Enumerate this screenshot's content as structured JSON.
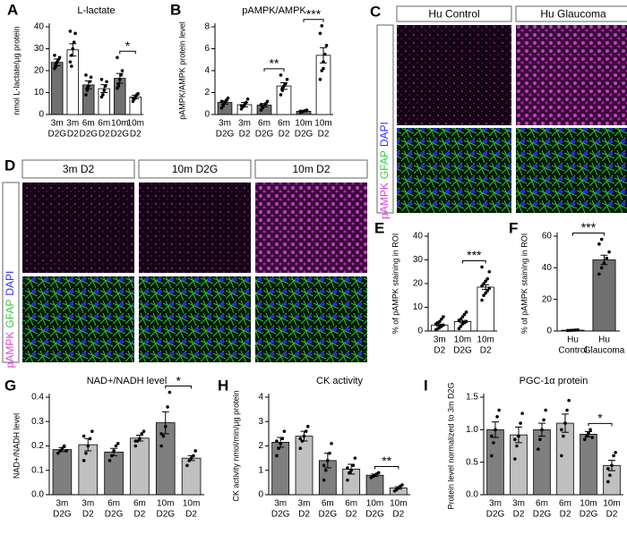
{
  "chart_data": [
    {
      "type": "bar",
      "panel": "A",
      "title": "L-lactate",
      "ylabel": "nmol L-lactate/µg protein",
      "categories": [
        [
          "3m",
          "D2G"
        ],
        [
          "3m",
          "D2"
        ],
        [
          "6m",
          "D2G"
        ],
        [
          "6m",
          "D2"
        ],
        [
          "10m",
          "D2G"
        ],
        [
          "10m",
          "D2"
        ]
      ],
      "values": [
        23.8,
        29.5,
        13.5,
        11.8,
        16.5,
        8
      ],
      "errors": [
        1.5,
        2.8,
        1.8,
        1.8,
        2.2,
        0.8
      ],
      "points": [
        [
          21,
          22,
          24,
          25,
          26,
          27,
          23
        ],
        [
          24,
          27,
          30,
          33,
          37,
          38,
          22
        ],
        [
          9,
          11,
          13,
          15,
          17,
          18,
          12
        ],
        [
          8,
          9,
          11,
          13,
          15,
          16
        ],
        [
          12,
          14,
          16,
          18,
          20,
          26,
          13
        ],
        [
          6,
          7,
          8,
          9,
          9.5,
          7.5
        ]
      ],
      "colors": [
        "#707070",
        "#ffffff",
        "#707070",
        "#ffffff",
        "#707070",
        "#ffffff"
      ],
      "ylim": [
        0,
        40
      ],
      "yticks": [
        0,
        10,
        20,
        30,
        40
      ],
      "significance": [
        {
          "between": [
            4,
            5
          ],
          "label": "*"
        }
      ]
    },
    {
      "type": "bar",
      "panel": "B",
      "title": "pAMPK/AMPK",
      "ylabel": "pAMPK/AMPK protein level",
      "categories": [
        [
          "3m",
          "D2G"
        ],
        [
          "3m",
          "D2"
        ],
        [
          "6m",
          "D2G"
        ],
        [
          "6m",
          "D2"
        ],
        [
          "10m",
          "D2G"
        ],
        [
          "10m",
          "D2"
        ]
      ],
      "values": [
        1.1,
        0.9,
        0.85,
        2.6,
        0.3,
        5.4
      ],
      "errors": [
        0.15,
        0.2,
        0.15,
        0.3,
        0.06,
        0.7
      ],
      "points": [
        [
          0.6,
          0.9,
          1.1,
          1.3,
          1.5,
          1.2,
          0.8
        ],
        [
          0.5,
          0.7,
          0.9,
          1.1,
          1.4,
          0.8
        ],
        [
          0.4,
          0.6,
          0.8,
          1.0,
          1.2,
          0.9
        ],
        [
          1.8,
          2.2,
          2.6,
          2.8,
          3.2,
          3.6,
          2.4
        ],
        [
          0.2,
          0.25,
          0.3,
          0.35,
          0.4,
          0.3
        ],
        [
          3.2,
          4.0,
          4.8,
          5.5,
          6.3,
          7.4,
          8.1,
          4.2
        ]
      ],
      "colors": [
        "#707070",
        "#ffffff",
        "#707070",
        "#ffffff",
        "#707070",
        "#ffffff"
      ],
      "ylim": [
        0,
        8
      ],
      "yticks": [
        0,
        2,
        4,
        6,
        8
      ],
      "significance": [
        {
          "between": [
            2,
            3
          ],
          "label": "**"
        },
        {
          "between": [
            4,
            5
          ],
          "label": "***"
        }
      ]
    },
    {
      "type": "bar",
      "panel": "E",
      "ylabel": "% of pAMPK staining in ROI",
      "categories": [
        [
          "3m",
          "D2"
        ],
        [
          "10m",
          "D2G"
        ],
        [
          "10m",
          "D2"
        ]
      ],
      "values": [
        2.5,
        4,
        18.5
      ],
      "errors": [
        0.4,
        0.5,
        1
      ],
      "points": [
        [
          0.5,
          1,
          1.5,
          2,
          2.5,
          3,
          3.5,
          4,
          5,
          6
        ],
        [
          1,
          2,
          3,
          3.5,
          4,
          4.5,
          5,
          6,
          7,
          8
        ],
        [
          13,
          15,
          16,
          17,
          18,
          19,
          20,
          21,
          22,
          25,
          27
        ]
      ],
      "colors": [
        "#ffffff",
        "#ffffff",
        "#ffffff"
      ],
      "ylim": [
        0,
        40
      ],
      "yticks": [
        0,
        10,
        20,
        30,
        40
      ],
      "significance": [
        {
          "between": [
            1,
            2
          ],
          "label": "***"
        }
      ]
    },
    {
      "type": "bar",
      "panel": "F",
      "ylabel": "% of pAMPK staining in ROI",
      "categories": [
        [
          "Hu",
          "Control"
        ],
        [
          "Hu",
          "Glaucoma"
        ]
      ],
      "values": [
        0.5,
        45
      ],
      "errors": [
        0.1,
        3
      ],
      "points": [
        [
          0.3,
          0.4,
          0.5,
          0.6,
          0.7
        ],
        [
          36,
          40,
          43,
          46,
          50,
          55,
          58
        ]
      ],
      "colors": [
        "#ffffff",
        "#707070"
      ],
      "ylim": [
        0,
        60
      ],
      "yticks": [
        0,
        20,
        40,
        60
      ],
      "significance": [
        {
          "between": [
            0,
            1
          ],
          "label": "***"
        }
      ]
    },
    {
      "type": "bar",
      "panel": "G",
      "title": "NAD+/NADH level",
      "ylabel": "NAD+/NADH level",
      "categories": [
        [
          "3m",
          "D2G"
        ],
        [
          "3m",
          "D2"
        ],
        [
          "6m",
          "D2G"
        ],
        [
          "6m",
          "D2"
        ],
        [
          "10m",
          "D2G"
        ],
        [
          "10m",
          "D2"
        ]
      ],
      "values": [
        0.185,
        0.205,
        0.175,
        0.232,
        0.295,
        0.15
      ],
      "errors": [
        0.008,
        0.025,
        0.015,
        0.012,
        0.045,
        0.01
      ],
      "points": [
        [
          0.17,
          0.18,
          0.19,
          0.2,
          0.18
        ],
        [
          0.14,
          0.17,
          0.2,
          0.23,
          0.26,
          0.24
        ],
        [
          0.14,
          0.16,
          0.18,
          0.2,
          0.21
        ],
        [
          0.2,
          0.22,
          0.23,
          0.25,
          0.26,
          0.22
        ],
        [
          0.2,
          0.24,
          0.28,
          0.36,
          0.42,
          0.25
        ],
        [
          0.12,
          0.14,
          0.15,
          0.16,
          0.18
        ]
      ],
      "colors": [
        "#7f7f7f",
        "#c0c0c0",
        "#7f7f7f",
        "#c0c0c0",
        "#7f7f7f",
        "#c0c0c0"
      ],
      "ylim": [
        0,
        0.4
      ],
      "yticks": [
        {
          "value": 0,
          "label": "0.0"
        },
        0.1,
        0.2,
        0.3,
        0.4
      ],
      "significance": [
        {
          "between": [
            4,
            5
          ],
          "label": "*"
        }
      ]
    },
    {
      "type": "bar",
      "panel": "H",
      "title": "CK activity",
      "ylabel": "CK activity nmol/min/µg protein",
      "categories": [
        [
          "3m",
          "D2G"
        ],
        [
          "3m",
          "D2"
        ],
        [
          "6m",
          "D2G"
        ],
        [
          "6m",
          "D2"
        ],
        [
          "10m",
          "D2G"
        ],
        [
          "10m",
          "D2"
        ]
      ],
      "values": [
        2.15,
        2.4,
        1.4,
        1.05,
        0.8,
        0.28
      ],
      "errors": [
        0.2,
        0.2,
        0.3,
        0.2,
        0.05,
        0.05
      ],
      "points": [
        [
          1.6,
          1.9,
          2.1,
          2.3,
          2.6,
          2.2
        ],
        [
          1.9,
          2.2,
          2.4,
          2.6,
          2.8,
          2.3
        ],
        [
          0.6,
          1.0,
          1.4,
          1.7,
          2.1,
          1.2
        ],
        [
          0.6,
          0.9,
          1.0,
          1.2,
          1.5,
          1.1
        ],
        [
          0.7,
          0.75,
          0.8,
          0.85,
          0.9
        ],
        [
          0.15,
          0.2,
          0.28,
          0.35,
          0.4
        ]
      ],
      "colors": [
        "#7f7f7f",
        "#c0c0c0",
        "#7f7f7f",
        "#c0c0c0",
        "#7f7f7f",
        "#c0c0c0"
      ],
      "ylim": [
        0,
        4
      ],
      "yticks": [
        0,
        1,
        2,
        3,
        4
      ],
      "significance": [
        {
          "between": [
            4,
            5
          ],
          "label": "**"
        }
      ]
    },
    {
      "type": "bar",
      "panel": "I",
      "title": "PGC-1α protein",
      "ylabel": "Protein level normalized to 3m D2G",
      "categories": [
        [
          "3m",
          "D2G"
        ],
        [
          "3m",
          "D2"
        ],
        [
          "6m",
          "D2G"
        ],
        [
          "6m",
          "D2"
        ],
        [
          "10m",
          "D2G"
        ],
        [
          "10m",
          "D2"
        ]
      ],
      "values": [
        1.0,
        0.92,
        1.0,
        1.1,
        0.93,
        0.45
      ],
      "errors": [
        0.12,
        0.12,
        0.1,
        0.14,
        0.04,
        0.08
      ],
      "points": [
        [
          0.6,
          0.8,
          1.0,
          1.2,
          1.3,
          0.9
        ],
        [
          0.55,
          0.75,
          0.9,
          1.1,
          1.25,
          0.85
        ],
        [
          0.7,
          0.85,
          1.0,
          1.15,
          1.3
        ],
        [
          0.6,
          0.9,
          1.1,
          1.3,
          1.45,
          1.0
        ],
        [
          0.85,
          0.9,
          0.95,
          1.0,
          0.88
        ],
        [
          0.2,
          0.3,
          0.45,
          0.6,
          0.65,
          0.4
        ]
      ],
      "colors": [
        "#7f7f7f",
        "#c0c0c0",
        "#7f7f7f",
        "#c0c0c0",
        "#7f7f7f",
        "#c0c0c0"
      ],
      "ylim": [
        0,
        1.5
      ],
      "yticks": [
        {
          "value": 0,
          "label": "0.0"
        },
        0.5,
        {
          "value": 1,
          "label": "1.0"
        },
        1.5
      ],
      "significance": [
        {
          "between": [
            4,
            5
          ],
          "label": "*"
        }
      ]
    }
  ],
  "image_panels": [
    {
      "panel": "C",
      "columns": [
        "Hu Control",
        "Hu Glaucoma"
      ],
      "channels": [
        {
          "name": "pAMPK",
          "color": "#e040e0"
        },
        {
          "name": "GFAP",
          "color": "#2ecc40"
        },
        {
          "name": "DAPI",
          "color": "#3030ff"
        }
      ]
    },
    {
      "panel": "D",
      "columns": [
        "3m D2",
        "10m D2G",
        "10m D2"
      ],
      "channels": [
        {
          "name": "pAMPK",
          "color": "#e040e0"
        },
        {
          "name": "GFAP",
          "color": "#2ecc40"
        },
        {
          "name": "DAPI",
          "color": "#3030ff"
        }
      ]
    }
  ]
}
